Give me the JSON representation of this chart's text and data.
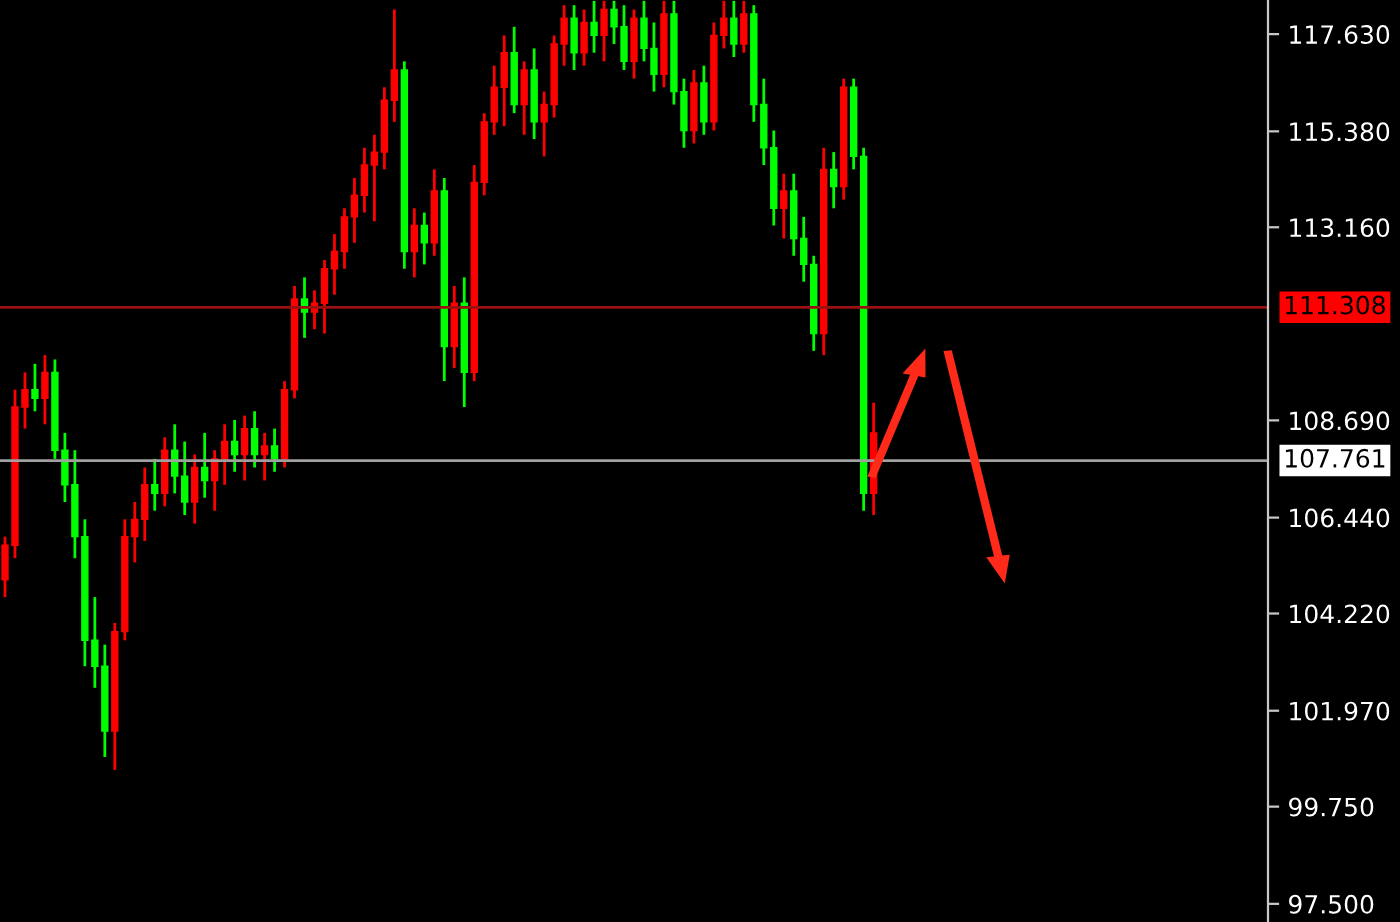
{
  "chart_data": {
    "type": "candlestick",
    "categories": [
      null,
      null,
      null,
      null,
      null,
      null,
      null,
      null,
      null,
      null,
      null,
      null,
      null,
      null,
      null,
      null,
      null,
      null,
      null,
      null,
      null,
      null,
      null,
      null,
      null,
      null,
      null,
      null,
      null,
      null,
      null,
      null,
      null,
      null,
      null,
      null,
      null,
      null,
      null,
      null,
      null,
      null,
      null,
      null,
      null,
      null,
      null,
      null,
      null,
      null,
      null,
      null,
      null,
      null,
      null,
      null,
      null,
      null,
      null,
      null,
      null,
      null,
      null,
      null,
      null,
      null,
      null,
      null,
      null,
      null,
      null,
      null,
      null,
      null,
      null,
      null,
      null,
      null,
      null,
      null,
      null,
      null,
      null,
      null,
      null,
      null,
      null,
      null,
      null,
      null,
      null,
      null,
      null,
      null,
      null,
      null,
      null,
      null,
      null,
      null,
      null,
      null,
      null,
      null,
      null,
      null,
      null,
      null,
      null,
      null,
      null,
      null,
      null,
      null,
      null,
      null,
      null,
      null,
      null,
      null,
      null,
      null,
      null,
      null,
      null,
      null,
      null
    ],
    "ohlc": [
      [
        105.0,
        106.0,
        104.6,
        105.8
      ],
      [
        105.8,
        109.4,
        105.5,
        109.0
      ],
      [
        109.0,
        109.8,
        108.5,
        109.4
      ],
      [
        109.4,
        110.0,
        108.9,
        109.2
      ],
      [
        109.2,
        110.2,
        108.6,
        109.8
      ],
      [
        109.8,
        110.1,
        107.8,
        108.0
      ],
      [
        108.0,
        108.4,
        106.8,
        107.2
      ],
      [
        107.2,
        108.0,
        105.5,
        106.0
      ],
      [
        106.0,
        106.4,
        103.0,
        103.6
      ],
      [
        103.6,
        104.6,
        102.5,
        103.0
      ],
      [
        103.0,
        103.5,
        100.9,
        101.5
      ],
      [
        101.5,
        104.0,
        100.6,
        103.8
      ],
      [
        103.8,
        106.4,
        103.6,
        106.0
      ],
      [
        106.0,
        106.8,
        105.4,
        106.4
      ],
      [
        106.4,
        107.6,
        105.9,
        107.2
      ],
      [
        107.2,
        107.8,
        106.6,
        107.0
      ],
      [
        107.0,
        108.3,
        106.7,
        108.0
      ],
      [
        108.0,
        108.6,
        107.0,
        107.4
      ],
      [
        107.4,
        108.2,
        106.5,
        106.8
      ],
      [
        106.8,
        107.9,
        106.3,
        107.6
      ],
      [
        107.6,
        108.4,
        106.9,
        107.3
      ],
      [
        107.3,
        108.0,
        106.6,
        107.8
      ],
      [
        107.8,
        108.6,
        107.2,
        108.2
      ],
      [
        108.2,
        108.7,
        107.5,
        107.9
      ],
      [
        107.9,
        108.8,
        107.3,
        108.5
      ],
      [
        108.5,
        108.9,
        107.6,
        107.9
      ],
      [
        107.9,
        108.4,
        107.3,
        108.1
      ],
      [
        108.1,
        108.5,
        107.5,
        107.8
      ],
      [
        107.8,
        109.6,
        107.6,
        109.4
      ],
      [
        109.4,
        111.8,
        109.2,
        111.5
      ],
      [
        111.5,
        112.0,
        110.6,
        111.2
      ],
      [
        111.2,
        111.7,
        110.8,
        111.4
      ],
      [
        111.4,
        112.4,
        110.7,
        112.2
      ],
      [
        112.2,
        113.0,
        111.6,
        112.6
      ],
      [
        112.6,
        113.6,
        112.2,
        113.4
      ],
      [
        113.4,
        114.3,
        112.8,
        113.9
      ],
      [
        113.9,
        115.0,
        113.5,
        114.6
      ],
      [
        114.6,
        115.3,
        113.3,
        114.9
      ],
      [
        114.9,
        116.4,
        114.5,
        116.1
      ],
      [
        116.1,
        118.2,
        115.6,
        116.8
      ],
      [
        116.8,
        117.0,
        112.2,
        112.6
      ],
      [
        112.6,
        113.6,
        112.0,
        113.2
      ],
      [
        113.2,
        113.5,
        112.3,
        112.8
      ],
      [
        112.8,
        114.5,
        112.5,
        114.0
      ],
      [
        114.0,
        114.3,
        109.6,
        110.4
      ],
      [
        110.4,
        111.8,
        109.9,
        111.4
      ],
      [
        111.4,
        112.0,
        109.0,
        109.8
      ],
      [
        109.8,
        114.6,
        109.6,
        114.2
      ],
      [
        114.2,
        115.8,
        113.9,
        115.6
      ],
      [
        115.6,
        116.9,
        115.3,
        116.4
      ],
      [
        116.4,
        117.6,
        115.5,
        117.2
      ],
      [
        117.2,
        117.8,
        115.8,
        116.0
      ],
      [
        116.0,
        117.0,
        115.3,
        116.8
      ],
      [
        116.8,
        117.3,
        115.2,
        115.6
      ],
      [
        115.6,
        116.3,
        114.8,
        116.0
      ],
      [
        116.0,
        117.6,
        115.7,
        117.4
      ],
      [
        117.4,
        118.3,
        116.9,
        118.0
      ],
      [
        118.0,
        118.3,
        116.8,
        117.2
      ],
      [
        117.2,
        118.2,
        116.9,
        117.9
      ],
      [
        117.9,
        118.4,
        117.2,
        117.6
      ],
      [
        117.6,
        118.4,
        117.0,
        118.2
      ],
      [
        118.2,
        118.4,
        117.4,
        117.8
      ],
      [
        117.8,
        118.3,
        116.8,
        117.0
      ],
      [
        117.0,
        118.2,
        116.6,
        118.0
      ],
      [
        118.0,
        118.4,
        117.0,
        117.3
      ],
      [
        117.3,
        117.9,
        116.3,
        116.7
      ],
      [
        116.7,
        118.4,
        116.4,
        118.1
      ],
      [
        118.1,
        118.4,
        116.0,
        116.3
      ],
      [
        116.3,
        116.6,
        115.0,
        115.4
      ],
      [
        115.4,
        116.8,
        115.1,
        116.5
      ],
      [
        116.5,
        116.9,
        115.3,
        115.6
      ],
      [
        115.6,
        117.9,
        115.4,
        117.6
      ],
      [
        117.6,
        118.4,
        117.3,
        118.0
      ],
      [
        118.0,
        118.4,
        117.1,
        117.4
      ],
      [
        117.4,
        118.4,
        117.2,
        118.1
      ],
      [
        118.1,
        118.3,
        115.6,
        116.0
      ],
      [
        116.0,
        116.6,
        114.6,
        115.0
      ],
      [
        115.0,
        115.4,
        113.2,
        113.6
      ],
      [
        113.6,
        114.4,
        112.9,
        114.0
      ],
      [
        114.0,
        114.4,
        112.5,
        112.9
      ],
      [
        112.9,
        113.4,
        111.9,
        112.3
      ],
      [
        112.3,
        112.5,
        110.3,
        110.7
      ],
      [
        110.7,
        115.0,
        110.2,
        114.5
      ],
      [
        114.5,
        114.9,
        113.6,
        114.1
      ],
      [
        114.1,
        116.6,
        113.8,
        116.4
      ],
      [
        116.4,
        116.6,
        114.5,
        114.8
      ],
      [
        114.8,
        115.0,
        106.6,
        107.0
      ],
      [
        107.0,
        109.1,
        106.5,
        108.4
      ],
      null,
      null,
      null,
      null,
      null,
      null,
      null,
      null,
      null,
      null,
      null,
      null,
      null,
      null,
      null,
      null,
      null,
      null,
      null,
      null,
      null,
      null,
      null,
      null,
      null,
      null,
      null,
      null,
      null,
      null,
      null,
      null,
      null,
      null,
      null,
      null,
      null,
      null,
      null
    ],
    "colors": [
      "#ff0000",
      "#ff0000",
      "#ff0000",
      "#00ff00",
      "#ff0000",
      "#00ff00",
      "#00ff00",
      "#00ff00",
      "#00ff00",
      "#00ff00",
      "#00ff00",
      "#ff0000",
      "#ff0000",
      "#ff0000",
      "#ff0000",
      "#00ff00",
      "#ff0000",
      "#00ff00",
      "#00ff00",
      "#ff0000",
      "#00ff00",
      "#ff0000",
      "#ff0000",
      "#00ff00",
      "#ff0000",
      "#00ff00",
      "#ff0000",
      "#00ff00",
      "#ff0000",
      "#ff0000",
      "#00ff00",
      "#ff0000",
      "#ff0000",
      "#ff0000",
      "#ff0000",
      "#ff0000",
      "#ff0000",
      "#ff0000",
      "#ff0000",
      "#ff0000",
      "#00ff00",
      "#ff0000",
      "#00ff00",
      "#ff0000",
      "#00ff00",
      "#ff0000",
      "#00ff00",
      "#ff0000",
      "#ff0000",
      "#ff0000",
      "#ff0000",
      "#00ff00",
      "#ff0000",
      "#00ff00",
      "#ff0000",
      "#ff0000",
      "#ff0000",
      "#00ff00",
      "#ff0000",
      "#00ff00",
      "#ff0000",
      "#00ff00",
      "#00ff00",
      "#ff0000",
      "#00ff00",
      "#00ff00",
      "#ff0000",
      "#00ff00",
      "#00ff00",
      "#ff0000",
      "#00ff00",
      "#ff0000",
      "#ff0000",
      "#00ff00",
      "#ff0000",
      "#00ff00",
      "#00ff00",
      "#00ff00",
      "#ff0000",
      "#00ff00",
      "#00ff00",
      "#00ff00",
      "#ff0000",
      "#00ff00",
      "#ff0000",
      "#00ff00",
      "#00ff00",
      "#ff0000",
      null,
      null,
      null,
      null,
      null,
      null,
      null,
      null,
      null,
      null,
      null,
      null,
      null,
      null,
      null,
      null,
      null,
      null,
      null,
      null,
      null,
      null,
      null,
      null,
      null,
      null,
      null,
      null,
      null,
      null,
      null,
      null,
      null,
      null,
      null,
      null,
      null,
      null,
      null
    ],
    "ylim": [
      97.08,
      118.42
    ],
    "yticks": [
      {
        "value": 117.63,
        "label": "117.630"
      },
      {
        "value": 115.38,
        "label": "115.380"
      },
      {
        "value": 113.16,
        "label": "113.160"
      },
      {
        "value": 108.69,
        "label": "108.690"
      },
      {
        "value": 106.44,
        "label": "106.440"
      },
      {
        "value": 104.22,
        "label": "104.220"
      },
      {
        "value": 101.97,
        "label": "101.970"
      },
      {
        "value": 99.75,
        "label": "99.750"
      },
      {
        "value": 97.5,
        "label": "97.500"
      }
    ],
    "ref_lines": [
      {
        "axis": "y",
        "value": 111.308,
        "label": "111.308",
        "color": "#9b1010"
      },
      {
        "axis": "y",
        "value": 107.761,
        "label": "107.761",
        "color": "#a0a0a0"
      }
    ],
    "tick_labels": "y",
    "grid": false
  }
}
